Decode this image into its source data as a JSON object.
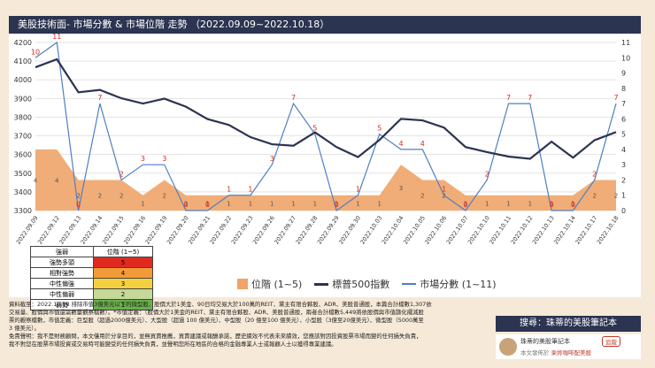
{
  "header": {
    "title": "美股技術面- 市場分數 & 市場位階 走勢 （2022.09.09~2022.10.18）"
  },
  "chart_data": {
    "type": "combo",
    "categories": [
      "2022.09.09",
      "2022.09.12",
      "2022.09.13",
      "2022.09.14",
      "2022.09.15",
      "2022.09.16",
      "2022.09.19",
      "2022.09.20",
      "2022.09.21",
      "2022.09.22",
      "2022.09.23",
      "2022.09.26",
      "2022.09.27",
      "2022.09.28",
      "2022.09.29",
      "2022.09.30",
      "2022.10.03",
      "2022.10.04",
      "2022.10.05",
      "2022.10.06",
      "2022.10.07",
      "2022.10.10",
      "2022.10.11",
      "2022.10.12",
      "2022.10.13",
      "2022.10.14",
      "2022.10.17",
      "2022.10.18"
    ],
    "left_axis": {
      "range": [
        3300,
        4200
      ],
      "ticks": [
        3300,
        3400,
        3500,
        3600,
        3700,
        3800,
        3900,
        4000,
        4100,
        4200
      ]
    },
    "right_axis": {
      "range": [
        0,
        11
      ],
      "ticks": [
        0,
        1,
        2,
        3,
        4,
        5,
        6,
        7,
        8,
        9,
        10,
        11
      ]
    },
    "series": [
      {
        "name": "位階 (1~5)",
        "kind": "area",
        "color": "#f0a468",
        "values": [
          4,
          4,
          2,
          2,
          2,
          1,
          2,
          1,
          1,
          1,
          1,
          1,
          1,
          1,
          1,
          1,
          1,
          3,
          2,
          2,
          1,
          1,
          1,
          1,
          1,
          1,
          2,
          2
        ]
      },
      {
        "name": "標普500指數",
        "kind": "line",
        "color": "#2b3450",
        "values": [
          4067,
          4110,
          3933,
          3946,
          3901,
          3873,
          3899,
          3856,
          3790,
          3758,
          3693,
          3655,
          3647,
          3719,
          3640,
          3586,
          3678,
          3791,
          3783,
          3744,
          3640,
          3613,
          3589,
          3577,
          3669,
          3583,
          3677,
          3720
        ]
      },
      {
        "name": "市場分數 (1~11)",
        "kind": "line",
        "color": "#4f7fc4",
        "values": [
          10,
          11,
          0,
          7,
          2,
          3,
          3,
          0,
          0,
          1,
          1,
          3,
          7,
          5,
          0,
          1,
          5,
          4,
          4,
          1,
          0,
          2,
          7,
          7,
          0,
          0,
          2,
          7
        ]
      }
    ],
    "legend": [
      "位階 (1~5)",
      "標普500指數",
      "市場分數 (1~11)"
    ]
  },
  "level_table": {
    "headers": [
      "強弱",
      "位階 (1~5)"
    ],
    "rows": [
      {
        "label": "強勢多頭",
        "value": "5",
        "color": "#e02a1f"
      },
      {
        "label": "相對強勢",
        "value": "4",
        "color": "#f29b38"
      },
      {
        "label": "中性偏強",
        "value": "3",
        "color": "#f4d03f"
      },
      {
        "label": "中性偏弱",
        "value": "2",
        "color": "#c5d89a"
      },
      {
        "label": "弱勢",
        "value": "1",
        "color": "#6ab04c"
      }
    ]
  },
  "notes": {
    "line1": "資料截至：2022.10.18 排除市值3億美元以下的微型股、股價大於1美金、90日均交易大於100萬的REIT、黨主有限合夥股、ADR、美股普通股，本篇合計檔數1,307依",
    "line2": "交易量、股價與市值還需數量觀察檔數）。*市值定義：（股價大於1美金的REIT、黨主有限合夥股、ADR、美股普通股，兩者合計檔數5,449將依股價與市值篩化擺減股",
    "line3": "票的觀察檔數，市值定義：巨型股（超過2000億美元）、大型股（超過 100 億美元）、中型股（20 億至100 億美元）、小型股（3億至20億美元）、微型股（5000萬至",
    "line4": "3 億美元）。",
    "line5": "免責聲明：我不是財務顧問，本文僅用於分享目的，並無買賣推薦，買賣建議或報酬承諾，歷史績效不代表未來績效，您應該對因投資股票市場而變的任何損失負責，",
    "line6": "我不對您在股票市場投資或交易時可能變受的任何損失負責，並聲明您所在地區的合格的金融專業人士或報顧人士以獲得專業建議。"
  },
  "search_label": "搜尋：珠蒂的美股筆記本",
  "author": {
    "name": "珠蒂的美股筆記本",
    "follow": "追蹤",
    "sub_prefix": "本文發佈於",
    "sub_link": "柬妳咖啡配美股"
  }
}
